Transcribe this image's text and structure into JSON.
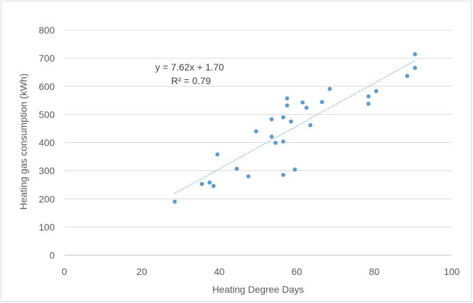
{
  "chart_data": {
    "type": "scatter",
    "title": "",
    "xlabel": "Heating Degree Days",
    "ylabel": "Heating gas consumption (kWh)",
    "xlim": [
      0,
      100
    ],
    "ylim": [
      0,
      800
    ],
    "x_ticks": [
      0,
      20,
      40,
      60,
      80,
      100
    ],
    "y_ticks": [
      0,
      100,
      200,
      300,
      400,
      500,
      600,
      700,
      800
    ],
    "grid": "horizontal",
    "legend": "none",
    "series": [
      {
        "color": "#5b9bd5",
        "points": [
          {
            "x": 28.5,
            "y": 190
          },
          {
            "x": 35.5,
            "y": 253
          },
          {
            "x": 37.5,
            "y": 258
          },
          {
            "x": 38.5,
            "y": 246
          },
          {
            "x": 39.5,
            "y": 358
          },
          {
            "x": 44.5,
            "y": 307
          },
          {
            "x": 47.5,
            "y": 280
          },
          {
            "x": 49.5,
            "y": 440
          },
          {
            "x": 53.5,
            "y": 483
          },
          {
            "x": 53.5,
            "y": 421
          },
          {
            "x": 54.5,
            "y": 399
          },
          {
            "x": 56.5,
            "y": 490
          },
          {
            "x": 56.5,
            "y": 404
          },
          {
            "x": 56.5,
            "y": 285
          },
          {
            "x": 57.5,
            "y": 557
          },
          {
            "x": 57.5,
            "y": 532
          },
          {
            "x": 58.5,
            "y": 475
          },
          {
            "x": 59.5,
            "y": 304
          },
          {
            "x": 61.5,
            "y": 543
          },
          {
            "x": 62.5,
            "y": 524
          },
          {
            "x": 63.5,
            "y": 462
          },
          {
            "x": 66.5,
            "y": 544
          },
          {
            "x": 68.5,
            "y": 591
          },
          {
            "x": 78.5,
            "y": 564
          },
          {
            "x": 78.5,
            "y": 538
          },
          {
            "x": 80.5,
            "y": 583
          },
          {
            "x": 88.5,
            "y": 637
          },
          {
            "x": 90.5,
            "y": 714
          },
          {
            "x": 90.5,
            "y": 666
          }
        ]
      }
    ],
    "trendline": {
      "slope": 7.62,
      "intercept": 1.7,
      "x_range": [
        28.5,
        90.5
      ],
      "color": "#5b9bd5",
      "equation_label": "y = 7.62x + 1.70",
      "r2_label": "R² = 0.79"
    },
    "colors": {
      "gridline": "#d9d9d9",
      "axis": "#bfbfbf",
      "text": "#595959"
    }
  }
}
